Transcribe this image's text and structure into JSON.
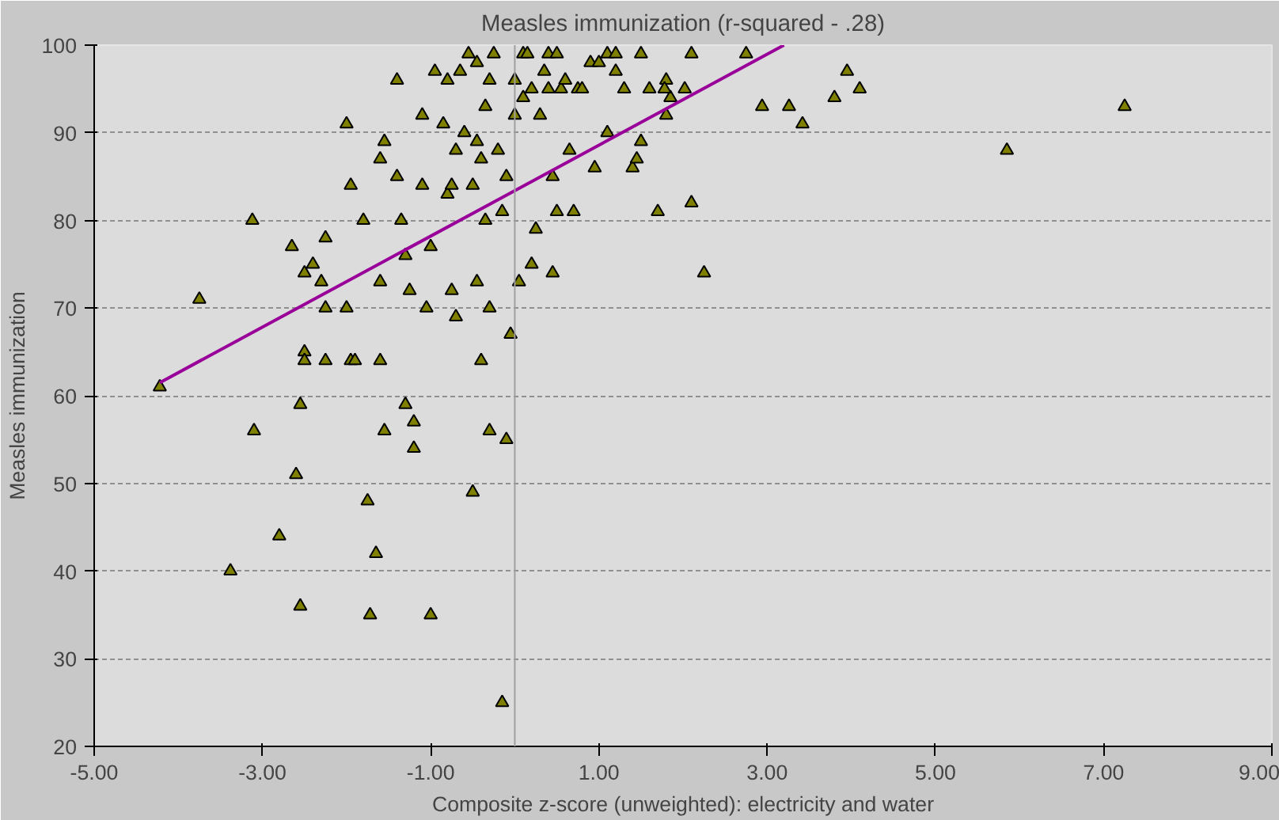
{
  "chart_data": {
    "type": "scatter",
    "title": "Measles immunization (r-squared - .28)",
    "xlabel": "Composite z-score (unweighted): electricity and water",
    "ylabel": "Measles immunization",
    "xlim": [
      -5,
      9
    ],
    "ylim": [
      20,
      100
    ],
    "xticks": [
      {
        "value": -5,
        "label": "-5.00"
      },
      {
        "value": -3,
        "label": "-3.00"
      },
      {
        "value": -1,
        "label": "-1.00"
      },
      {
        "value": 1,
        "label": "1.00"
      },
      {
        "value": 3,
        "label": "3.00"
      },
      {
        "value": 5,
        "label": "5.00"
      },
      {
        "value": 7,
        "label": "7.00"
      },
      {
        "value": 9,
        "label": "9.00"
      }
    ],
    "yticks": [
      20,
      30,
      40,
      50,
      60,
      70,
      80,
      90,
      100
    ],
    "grid": "y",
    "ref_lines": [
      {
        "axis": "x",
        "value": 0,
        "label": null,
        "color": "#a0a0a0"
      }
    ],
    "series": [
      {
        "marker": "triangle",
        "color": "#808000",
        "x": [
          -4.22,
          -3.75,
          -3.38,
          -3.12,
          -3.1,
          -2.8,
          -2.65,
          -2.6,
          -2.55,
          -2.55,
          -2.5,
          -2.5,
          -2.5,
          -2.4,
          -2.3,
          -2.25,
          -2.25,
          -2.25,
          -2.0,
          -1.95,
          -2.0,
          -1.95,
          -1.9,
          -1.8,
          -1.75,
          -1.72,
          -1.65,
          -1.6,
          -1.55,
          -1.6,
          -1.6,
          -1.55,
          -1.4,
          -1.4,
          -1.35,
          -1.3,
          -1.25,
          -1.3,
          -1.2,
          -1.2,
          -1.1,
          -1.1,
          -1.05,
          -1.0,
          -1.0,
          -0.95,
          -0.85,
          -0.8,
          -0.8,
          -0.7,
          -0.75,
          -0.75,
          -0.7,
          -0.65,
          -0.6,
          -0.55,
          -0.5,
          -0.5,
          -0.45,
          -0.45,
          -0.45,
          -0.4,
          -0.4,
          -0.35,
          -0.35,
          -0.3,
          -0.3,
          -0.3,
          -0.25,
          -0.2,
          -0.15,
          -0.1,
          -0.1,
          -0.05,
          -0.15,
          0.0,
          0.0,
          0.05,
          0.1,
          0.1,
          0.15,
          0.2,
          0.2,
          0.25,
          0.3,
          0.35,
          0.4,
          0.4,
          0.45,
          0.45,
          0.5,
          0.5,
          0.55,
          0.6,
          0.65,
          0.7,
          0.75,
          0.8,
          0.9,
          0.95,
          1.0,
          1.1,
          1.1,
          1.2,
          1.2,
          1.3,
          1.4,
          1.45,
          1.5,
          1.5,
          1.6,
          1.7,
          1.8,
          1.8,
          1.85,
          2.1,
          2.1,
          2.25,
          1.78,
          2.02,
          2.75,
          2.94,
          3.26,
          3.42,
          3.8,
          3.95,
          4.1,
          5.85,
          7.25
        ],
        "values": [
          61,
          71,
          40,
          80,
          56,
          44,
          77,
          51,
          59,
          36,
          74,
          65,
          64,
          75,
          73,
          70,
          64,
          78,
          91,
          84,
          70,
          64,
          64,
          80,
          48,
          35,
          42,
          64,
          56,
          87,
          73,
          89,
          96,
          85,
          80,
          76,
          72,
          59,
          57,
          54,
          84,
          92,
          70,
          77,
          35,
          97,
          91,
          96,
          83,
          69,
          84,
          72,
          88,
          97,
          90,
          99,
          84,
          49,
          73,
          89,
          98,
          87,
          64,
          93,
          80,
          70,
          56,
          96,
          99,
          88,
          81,
          85,
          55,
          67,
          25,
          92,
          96,
          73,
          94,
          99,
          99,
          95,
          75,
          79,
          92,
          97,
          99,
          95,
          85,
          74,
          81,
          99,
          95,
          96,
          88,
          81,
          95,
          95,
          98,
          86,
          98,
          99,
          90,
          97,
          99,
          95,
          86,
          87,
          89,
          99,
          95,
          81,
          96,
          92,
          94,
          99,
          82,
          74,
          95,
          95,
          99,
          93,
          93,
          91,
          94,
          97,
          95,
          88,
          93
        ]
      },
      {
        "type": "line",
        "color": "#990099",
        "x": [
          -4.22,
          3.2
        ],
        "values": [
          61.5,
          100
        ]
      }
    ]
  }
}
